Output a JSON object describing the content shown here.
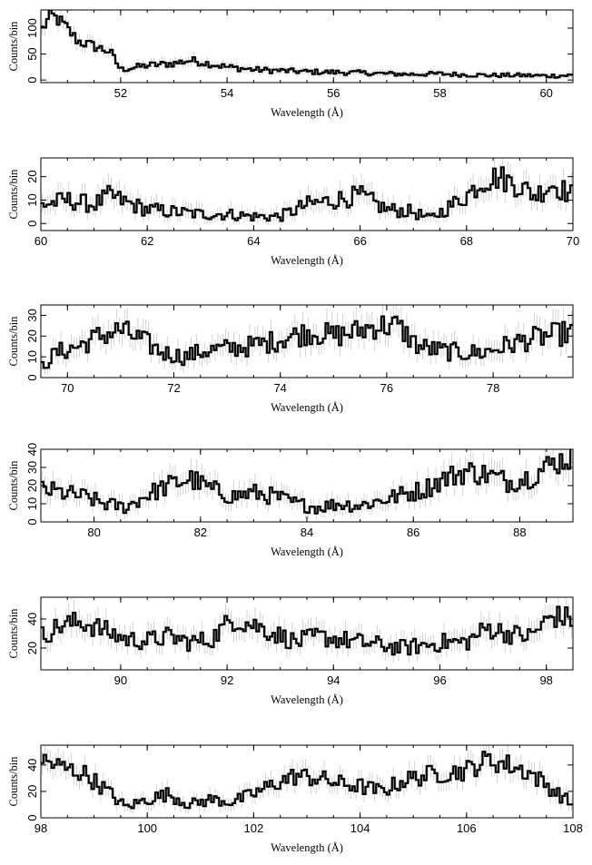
{
  "chart_data": [
    {
      "type": "line",
      "style": "step histogram with grey error bars",
      "xlabel": "Wavelength (Å)",
      "ylabel": "Counts/bin",
      "xlim": [
        50.5,
        60.5
      ],
      "ylim": [
        -5,
        135
      ],
      "xticks": [
        52,
        54,
        56,
        58,
        60
      ],
      "yticks": [
        0,
        50,
        100
      ],
      "series": [
        {
          "x": [
            50.5,
            50.7,
            50.9,
            51.2,
            51.5,
            51.8,
            52.0,
            52.5,
            53.0,
            53.3,
            53.6,
            54.0,
            54.5,
            55.0,
            55.5,
            56.0,
            56.5,
            57.0,
            57.5,
            58.0,
            58.5,
            59.0,
            59.5,
            60.0,
            60.5
          ],
          "y": [
            95,
            125,
            110,
            75,
            65,
            55,
            20,
            28,
            32,
            38,
            33,
            25,
            20,
            18,
            16,
            15,
            14,
            12,
            11,
            12,
            10,
            9,
            9,
            8,
            9
          ]
        }
      ]
    },
    {
      "type": "line",
      "style": "step histogram with grey error bars",
      "xlabel": "Wavelength (Å)",
      "ylabel": "Counts/bin",
      "xlim": [
        60,
        70
      ],
      "ylim": [
        -3,
        28
      ],
      "xticks": [
        60,
        62,
        64,
        66,
        68,
        70
      ],
      "yticks": [
        0,
        10,
        20
      ],
      "series": [
        {
          "x": [
            60,
            60.5,
            61,
            61.3,
            61.6,
            62,
            62.5,
            63,
            63.5,
            64,
            64.5,
            65,
            65.5,
            66,
            66.5,
            67,
            67.3,
            67.6,
            68,
            68.3,
            68.6,
            69,
            69.3,
            69.6,
            70
          ],
          "y": [
            8,
            10,
            8,
            12,
            9,
            6,
            5,
            4,
            4,
            3,
            3,
            8,
            10,
            12,
            6,
            5,
            2,
            6,
            12,
            18,
            20,
            16,
            12,
            17,
            12
          ]
        }
      ]
    },
    {
      "type": "line",
      "style": "step histogram with grey error bars",
      "xlabel": "Wavelength (Å)",
      "ylabel": "Counts/bin",
      "xlim": [
        69.5,
        79.5
      ],
      "ylim": [
        0,
        35
      ],
      "xticks": [
        70,
        72,
        74,
        76,
        78
      ],
      "yticks": [
        0,
        10,
        20,
        30
      ],
      "series": [
        {
          "x": [
            69.5,
            69.8,
            70.2,
            70.6,
            71,
            71.4,
            71.8,
            72.2,
            72.6,
            73,
            73.4,
            73.8,
            74.2,
            74.6,
            75,
            75.4,
            75.8,
            76.2,
            76.6,
            77,
            77.4,
            77.8,
            78.2,
            78.6,
            79,
            79.5
          ],
          "y": [
            5,
            12,
            15,
            20,
            23,
            18,
            12,
            10,
            13,
            14,
            15,
            17,
            20,
            22,
            20,
            22,
            25,
            25,
            15,
            13,
            12,
            12,
            15,
            18,
            20,
            22
          ]
        }
      ]
    },
    {
      "type": "line",
      "style": "step histogram with grey error bars",
      "xlabel": "Wavelength (Å)",
      "ylabel": "Counts/bin",
      "xlim": [
        79,
        89
      ],
      "ylim": [
        0,
        40
      ],
      "xticks": [
        80,
        82,
        84,
        86,
        88
      ],
      "yticks": [
        0,
        10,
        20,
        30,
        40
      ],
      "series": [
        {
          "x": [
            79,
            79.4,
            79.8,
            80.2,
            80.6,
            81,
            81.4,
            81.8,
            82.2,
            82.6,
            83,
            83.4,
            83.8,
            84.2,
            84.6,
            85,
            85.4,
            85.8,
            86.2,
            86.6,
            87,
            87.4,
            87.8,
            88.2,
            88.6,
            89
          ],
          "y": [
            18,
            16,
            14,
            10,
            8,
            15,
            20,
            24,
            18,
            14,
            16,
            14,
            10,
            8,
            10,
            9,
            12,
            15,
            18,
            24,
            28,
            26,
            22,
            25,
            32,
            36
          ]
        }
      ]
    },
    {
      "type": "line",
      "style": "step histogram with grey error bars",
      "xlabel": "Wavelength (Å)",
      "ylabel": "Counts/bin",
      "xlim": [
        88.5,
        98.5
      ],
      "ylim": [
        5,
        55
      ],
      "xticks": [
        90,
        92,
        94,
        96,
        98
      ],
      "yticks": [
        20,
        40
      ],
      "series": [
        {
          "x": [
            88.5,
            88.9,
            89.3,
            89.7,
            90.1,
            90.5,
            90.9,
            91.3,
            91.7,
            92.1,
            92.5,
            92.9,
            93.3,
            93.7,
            94.1,
            94.5,
            94.9,
            95.3,
            95.7,
            96.1,
            96.5,
            96.9,
            97.3,
            97.7,
            98.1,
            98.5
          ],
          "y": [
            28,
            36,
            38,
            32,
            26,
            25,
            28,
            24,
            26,
            40,
            36,
            30,
            24,
            28,
            26,
            24,
            22,
            20,
            22,
            24,
            24,
            34,
            30,
            28,
            42,
            40
          ]
        }
      ]
    },
    {
      "type": "line",
      "style": "step histogram with grey error bars",
      "xlabel": "Wavelength (Å)",
      "ylabel": "Counts/bin",
      "xlim": [
        98,
        108
      ],
      "ylim": [
        0,
        55
      ],
      "xticks": [
        98,
        100,
        102,
        104,
        106,
        108
      ],
      "yticks": [
        0,
        20,
        40
      ],
      "series": [
        {
          "x": [
            98,
            98.4,
            98.8,
            99.2,
            99.6,
            100,
            100.4,
            100.8,
            101.2,
            101.6,
            102,
            102.4,
            102.8,
            103.2,
            103.6,
            104,
            104.4,
            104.8,
            105.2,
            105.6,
            106,
            106.4,
            106.8,
            107.2,
            107.6,
            108
          ],
          "y": [
            44,
            38,
            34,
            22,
            8,
            14,
            18,
            10,
            14,
            12,
            18,
            26,
            32,
            30,
            26,
            24,
            20,
            28,
            32,
            34,
            36,
            44,
            40,
            34,
            22,
            10
          ]
        }
      ]
    }
  ]
}
